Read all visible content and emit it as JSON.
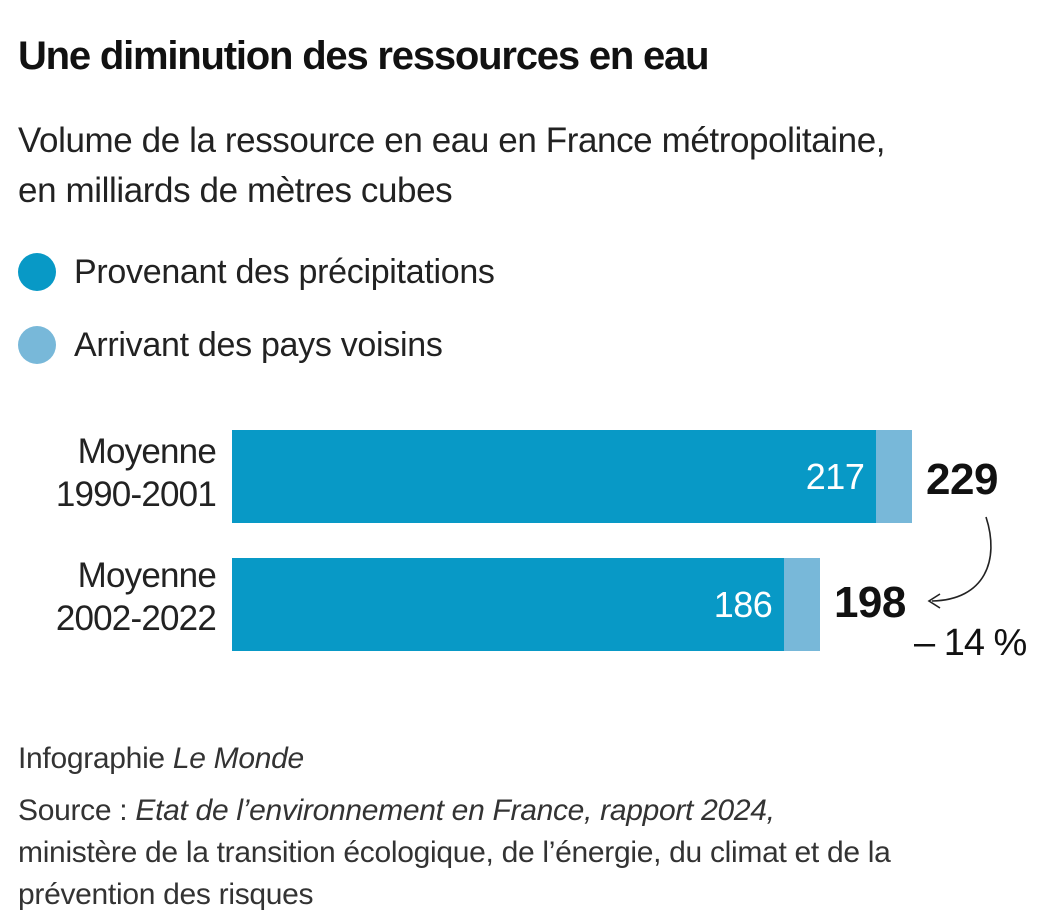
{
  "title": "Une diminution des ressources en eau",
  "subtitle": "Volume de la ressource en eau en France métropolitaine, en milliards de mètres cubes",
  "legend": [
    {
      "label": "Provenant des précipitations",
      "color": "#0899c6"
    },
    {
      "label": "Arrivant des pays voisins",
      "color": "#78b8d9"
    }
  ],
  "rows": [
    {
      "label_line1": "Moyenne",
      "label_line2": "1990-2001"
    },
    {
      "label_line1": "Moyenne",
      "label_line2": "2002-2022"
    }
  ],
  "annotation": {
    "change": "– 14 %"
  },
  "footer": {
    "credit_prefix": "Infographie",
    "credit_name": "Le Monde",
    "source_prefix": "Source : ",
    "source_title": "Etat de l’environnement en France, rapport 2024,",
    "source_rest": "ministère de la transition écologique, de l’énergie, du climat et de la prévention des risques"
  },
  "chart_data": {
    "type": "bar",
    "orientation": "horizontal",
    "stacked": true,
    "categories": [
      "Moyenne 1990-2001",
      "Moyenne 2002-2022"
    ],
    "series": [
      {
        "name": "Provenant des précipitations",
        "values": [
          217,
          186
        ]
      },
      {
        "name": "Arrivant des pays voisins",
        "values": [
          12,
          12
        ]
      }
    ],
    "totals": [
      229,
      198
    ],
    "title": "Une diminution des ressources en eau",
    "xlabel": "",
    "ylabel": "",
    "xlim": [
      0,
      229
    ],
    "grid": false,
    "legend_position": "top-left"
  }
}
